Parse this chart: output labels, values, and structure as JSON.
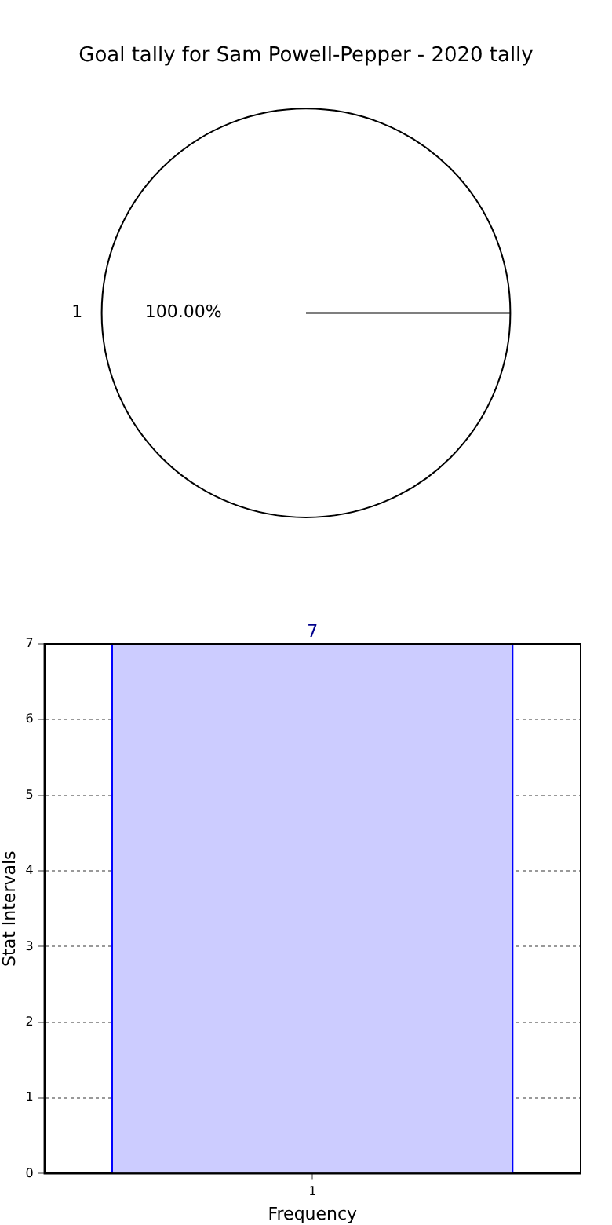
{
  "chart_data": [
    {
      "type": "pie",
      "title": "Goal tally for Sam Powell-Pepper - 2020 tally",
      "categories": [
        "1"
      ],
      "values": [
        100
      ],
      "colors": [
        "#ffffff"
      ],
      "value_labels": [
        "100.00%"
      ],
      "legend": false
    },
    {
      "type": "bar",
      "xlabel": "Frequency",
      "ylabel": "Stat Intervals",
      "categories": [
        "1"
      ],
      "values": [
        7
      ],
      "color": "#ccccff",
      "ylim": [
        0,
        7
      ],
      "yticks": [
        0,
        1,
        2,
        3,
        4,
        5,
        6,
        7
      ],
      "grid": true,
      "data_labels": true,
      "legend": false
    }
  ]
}
